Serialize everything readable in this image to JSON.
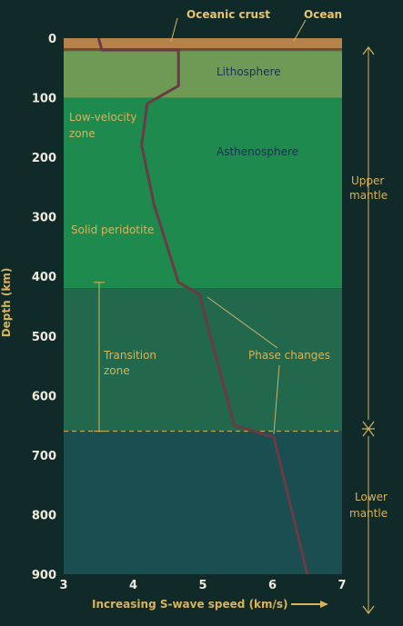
{
  "header": {
    "oceanic_crust": "Oceanic crust",
    "ocean": "Ocean"
  },
  "axes": {
    "y_title": "Depth (km)",
    "x_title": "Increasing S-wave speed (km/s)",
    "x_ticks": [
      "3",
      "4",
      "5",
      "6",
      "7"
    ],
    "y_ticks": [
      "0",
      "100",
      "200",
      "300",
      "400",
      "500",
      "600",
      "700",
      "800",
      "900"
    ],
    "x_range": [
      3,
      7
    ],
    "y_range": [
      0,
      900
    ]
  },
  "layers": [
    {
      "name": "Lithosphere",
      "label_lines": [
        "Lithosphere"
      ],
      "top_km": 20,
      "bottom_km": 100,
      "color": "#6f9a55"
    },
    {
      "name": "Asthenosphere",
      "label_lines": [
        "Asthenosphere"
      ],
      "top_km": 100,
      "bottom_km": 420,
      "color": "#1f8a4e"
    },
    {
      "name": "Transition zone",
      "label_lines": [
        "Transition",
        "zone"
      ],
      "top_km": 420,
      "bottom_km": 660,
      "color": "#21684d"
    },
    {
      "name": "Lower mantle",
      "label_lines": [],
      "top_km": 660,
      "bottom_km": 900,
      "color": "#1a4e50"
    }
  ],
  "annotations": {
    "low_velocity": [
      "Low-velocity",
      "zone"
    ],
    "solid_peridotite": "Solid peridotite",
    "phase_changes": "Phase changes",
    "upper_mantle": [
      "Upper",
      "mantle"
    ],
    "lower_mantle": [
      "Lower",
      "mantle"
    ]
  },
  "colors": {
    "ocean": "#b5824a",
    "crust_line": "#7a4b39",
    "curve": "#6a3a45",
    "gold": "#d8b35a",
    "background": "#102a2a"
  },
  "chart_data": {
    "type": "line",
    "x_label": "Increasing S-wave speed (km/s)",
    "y_label": "Depth (km)",
    "x_range": [
      3,
      7
    ],
    "y_range": [
      0,
      900
    ],
    "series": [
      {
        "points": [
          {
            "x": 3.5,
            "y": 0
          },
          {
            "x": 3.55,
            "y": 20
          },
          {
            "x": 4.65,
            "y": 20
          },
          {
            "x": 4.65,
            "y": 80
          },
          {
            "x": 4.2,
            "y": 110
          },
          {
            "x": 4.12,
            "y": 180
          },
          {
            "x": 4.3,
            "y": 280
          },
          {
            "x": 4.65,
            "y": 410
          },
          {
            "x": 4.95,
            "y": 430
          },
          {
            "x": 5.45,
            "y": 650
          },
          {
            "x": 6.02,
            "y": 670
          },
          {
            "x": 6.5,
            "y": 900
          }
        ]
      }
    ],
    "boundaries_km": [
      20,
      100,
      420,
      660
    ]
  }
}
